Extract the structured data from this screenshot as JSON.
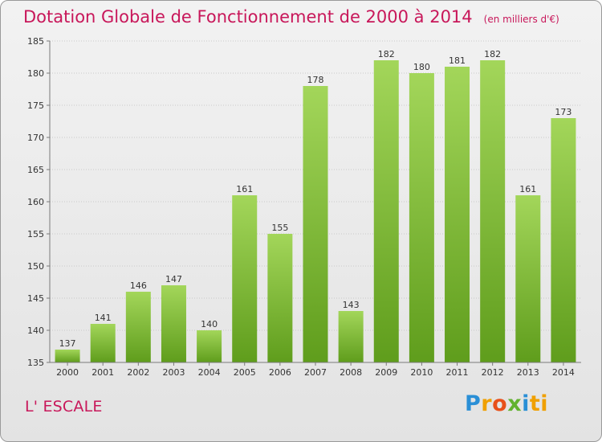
{
  "title": "Dotation Globale de Fonctionnement de 2000 à 2014",
  "unit": "(en milliers d'€)",
  "commune": "L' ESCALE",
  "brand": [
    "P",
    "r",
    "o",
    "x",
    "i",
    "ti"
  ],
  "colors": {
    "bar_light": "#a3d65a",
    "bar_dark": "#5f9d1c",
    "title": "#c8175a"
  },
  "chart_data": {
    "type": "bar",
    "categories": [
      "2000",
      "2001",
      "2002",
      "2003",
      "2004",
      "2005",
      "2006",
      "2007",
      "2008",
      "2009",
      "2010",
      "2011",
      "2012",
      "2013",
      "2014"
    ],
    "values": [
      137,
      141,
      146,
      147,
      140,
      161,
      155,
      178,
      143,
      182,
      180,
      181,
      182,
      161,
      173
    ],
    "ylim": [
      135,
      185
    ],
    "yticks": [
      135,
      140,
      145,
      150,
      155,
      160,
      165,
      170,
      175,
      180,
      185
    ],
    "grid": true
  }
}
